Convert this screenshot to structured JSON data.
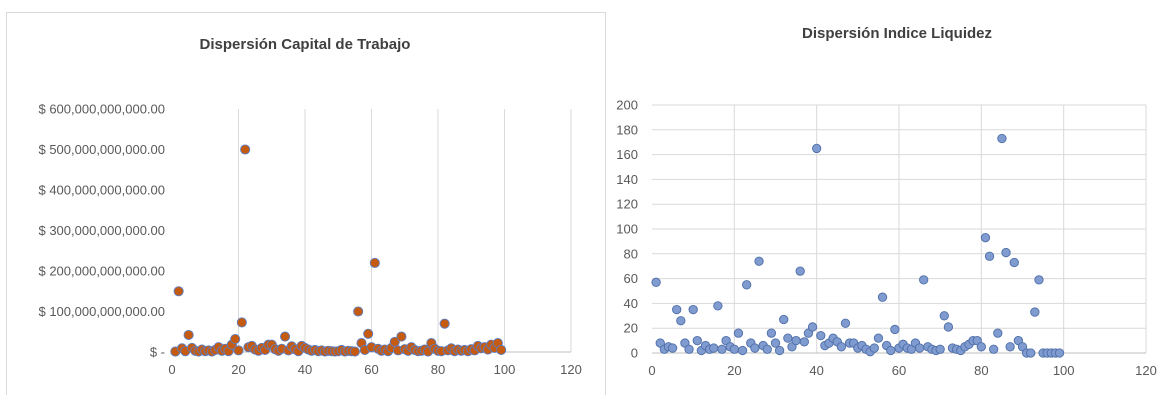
{
  "chart_data": [
    {
      "type": "scatter",
      "title": "Dispersión Capital de Trabajo",
      "xlim": [
        0,
        120
      ],
      "ylim": [
        0,
        600000000000000
      ],
      "x_ticks": [
        "0",
        "20",
        "40",
        "60",
        "80",
        "100",
        "120"
      ],
      "y_ticks": [
        "$ -",
        "$ 100,000,000,000.00",
        "$ 200,000,000,000.00",
        "$ 300,000,000,000.00",
        "$ 400,000,000,000.00",
        "$ 500,000,000,000.00",
        "$ 600,000,000,000.00"
      ],
      "grid": "vertical",
      "marker_fill": "#c55a11",
      "marker_stroke": "#5b7ec2",
      "points": [
        [
          1,
          1000000000000
        ],
        [
          2,
          150000000000000
        ],
        [
          3,
          9000000000000
        ],
        [
          4,
          2000000000000
        ],
        [
          5,
          42000000000000
        ],
        [
          6,
          10000000000000
        ],
        [
          7,
          3000000000000
        ],
        [
          8,
          1000000000000
        ],
        [
          9,
          6000000000000
        ],
        [
          10,
          2000000000000
        ],
        [
          11,
          4000000000000
        ],
        [
          12,
          1000000000000
        ],
        [
          13,
          5000000000000
        ],
        [
          14,
          12000000000000
        ],
        [
          15,
          3000000000000
        ],
        [
          16,
          8000000000000
        ],
        [
          17,
          2000000000000
        ],
        [
          18,
          18000000000000
        ],
        [
          19,
          32000000000000
        ],
        [
          20,
          4000000000000
        ],
        [
          21,
          73000000000000
        ],
        [
          22,
          500000000000000
        ],
        [
          23,
          12000000000000
        ],
        [
          24,
          15000000000000
        ],
        [
          25,
          6000000000000
        ],
        [
          26,
          3000000000000
        ],
        [
          27,
          10000000000000
        ],
        [
          28,
          5000000000000
        ],
        [
          29,
          18000000000000
        ],
        [
          30,
          18000000000000
        ],
        [
          31,
          7000000000000
        ],
        [
          32,
          3000000000000
        ],
        [
          33,
          8000000000000
        ],
        [
          34,
          38000000000000
        ],
        [
          35,
          4000000000000
        ],
        [
          36,
          14000000000000
        ],
        [
          37,
          7000000000000
        ],
        [
          38,
          2000000000000
        ],
        [
          39,
          15000000000000
        ],
        [
          40,
          10000000000000
        ],
        [
          41,
          6000000000000
        ],
        [
          42,
          3000000000000
        ],
        [
          43,
          5000000000000
        ],
        [
          44,
          2000000000000
        ],
        [
          45,
          4000000000000
        ],
        [
          46,
          1000000000000
        ],
        [
          47,
          3000000000000
        ],
        [
          48,
          2000000000000
        ],
        [
          49,
          1000000000000
        ],
        [
          50,
          2000000000000
        ],
        [
          51,
          5000000000000
        ],
        [
          52,
          1000000000000
        ],
        [
          53,
          3000000000000
        ],
        [
          54,
          2000000000000
        ],
        [
          55,
          1000000000000
        ],
        [
          56,
          100000000000000
        ],
        [
          57,
          22000000000000
        ],
        [
          58,
          5000000000000
        ],
        [
          59,
          45000000000000
        ],
        [
          60,
          12000000000000
        ],
        [
          61,
          220000000000000
        ],
        [
          62,
          8000000000000
        ],
        [
          63,
          3000000000000
        ],
        [
          64,
          6000000000000
        ],
        [
          65,
          2000000000000
        ],
        [
          66,
          10000000000000
        ],
        [
          67,
          25000000000000
        ],
        [
          68,
          4000000000000
        ],
        [
          69,
          38000000000000
        ],
        [
          70,
          7000000000000
        ],
        [
          71,
          3000000000000
        ],
        [
          72,
          12000000000000
        ],
        [
          73,
          5000000000000
        ],
        [
          74,
          2000000000000
        ],
        [
          75,
          3000000000000
        ],
        [
          76,
          6000000000000
        ],
        [
          77,
          1000000000000
        ],
        [
          78,
          22000000000000
        ],
        [
          79,
          8000000000000
        ],
        [
          80,
          3000000000000
        ],
        [
          81,
          2000000000000
        ],
        [
          82,
          70000000000000
        ],
        [
          83,
          4000000000000
        ],
        [
          84,
          9000000000000
        ],
        [
          85,
          2000000000000
        ],
        [
          86,
          6000000000000
        ],
        [
          87,
          3000000000000
        ],
        [
          88,
          5000000000000
        ],
        [
          89,
          2000000000000
        ],
        [
          90,
          7000000000000
        ],
        [
          91,
          4000000000000
        ],
        [
          92,
          15000000000000
        ],
        [
          93,
          9000000000000
        ],
        [
          94,
          12000000000000
        ],
        [
          95,
          6000000000000
        ],
        [
          96,
          18000000000000
        ],
        [
          97,
          10000000000000
        ],
        [
          98,
          22000000000000
        ],
        [
          99,
          5000000000000
        ]
      ]
    },
    {
      "type": "scatter",
      "title": "Dispersión Indice Liquidez",
      "xlim": [
        0,
        120
      ],
      "ylim": [
        0,
        200
      ],
      "x_ticks": [
        "0",
        "20",
        "40",
        "60",
        "80",
        "100",
        "120"
      ],
      "y_ticks": [
        "0",
        "20",
        "40",
        "60",
        "80",
        "100",
        "120",
        "140",
        "160",
        "180",
        "200"
      ],
      "grid": "both",
      "marker_fill": "#7f9bcf",
      "marker_stroke": "#4f6fa8",
      "points": [
        [
          1,
          57
        ],
        [
          2,
          8
        ],
        [
          3,
          3
        ],
        [
          4,
          5
        ],
        [
          5,
          4
        ],
        [
          6,
          35
        ],
        [
          7,
          26
        ],
        [
          8,
          8
        ],
        [
          9,
          3
        ],
        [
          10,
          35
        ],
        [
          11,
          10
        ],
        [
          12,
          2
        ],
        [
          13,
          6
        ],
        [
          14,
          3
        ],
        [
          15,
          4
        ],
        [
          16,
          38
        ],
        [
          17,
          3
        ],
        [
          18,
          10
        ],
        [
          19,
          5
        ],
        [
          20,
          3
        ],
        [
          21,
          16
        ],
        [
          22,
          2
        ],
        [
          23,
          55
        ],
        [
          24,
          8
        ],
        [
          25,
          4
        ],
        [
          26,
          74
        ],
        [
          27,
          6
        ],
        [
          28,
          3
        ],
        [
          29,
          16
        ],
        [
          30,
          8
        ],
        [
          31,
          2
        ],
        [
          32,
          27
        ],
        [
          33,
          12
        ],
        [
          34,
          5
        ],
        [
          35,
          10
        ],
        [
          36,
          66
        ],
        [
          37,
          9
        ],
        [
          38,
          16
        ],
        [
          39,
          21
        ],
        [
          40,
          165
        ],
        [
          41,
          14
        ],
        [
          42,
          6
        ],
        [
          43,
          8
        ],
        [
          44,
          12
        ],
        [
          45,
          9
        ],
        [
          46,
          5
        ],
        [
          47,
          24
        ],
        [
          48,
          8
        ],
        [
          49,
          8
        ],
        [
          50,
          4
        ],
        [
          51,
          6
        ],
        [
          52,
          3
        ],
        [
          53,
          1
        ],
        [
          54,
          4
        ],
        [
          55,
          12
        ],
        [
          56,
          45
        ],
        [
          57,
          6
        ],
        [
          58,
          2
        ],
        [
          59,
          19
        ],
        [
          60,
          4
        ],
        [
          61,
          7
        ],
        [
          62,
          4
        ],
        [
          63,
          3
        ],
        [
          64,
          8
        ],
        [
          65,
          4
        ],
        [
          66,
          59
        ],
        [
          67,
          5
        ],
        [
          68,
          3
        ],
        [
          69,
          2
        ],
        [
          70,
          3
        ],
        [
          71,
          30
        ],
        [
          72,
          21
        ],
        [
          73,
          4
        ],
        [
          74,
          3
        ],
        [
          75,
          2
        ],
        [
          76,
          5
        ],
        [
          77,
          7
        ],
        [
          78,
          10
        ],
        [
          79,
          10
        ],
        [
          80,
          5
        ],
        [
          81,
          93
        ],
        [
          82,
          78
        ],
        [
          83,
          3
        ],
        [
          84,
          16
        ],
        [
          85,
          173
        ],
        [
          86,
          81
        ],
        [
          87,
          5
        ],
        [
          88,
          73
        ],
        [
          89,
          10
        ],
        [
          90,
          5
        ],
        [
          91,
          0
        ],
        [
          92,
          0
        ],
        [
          93,
          33
        ],
        [
          94,
          59
        ],
        [
          95,
          0
        ],
        [
          96,
          0
        ],
        [
          97,
          0
        ],
        [
          98,
          0
        ],
        [
          99,
          0
        ]
      ]
    }
  ]
}
